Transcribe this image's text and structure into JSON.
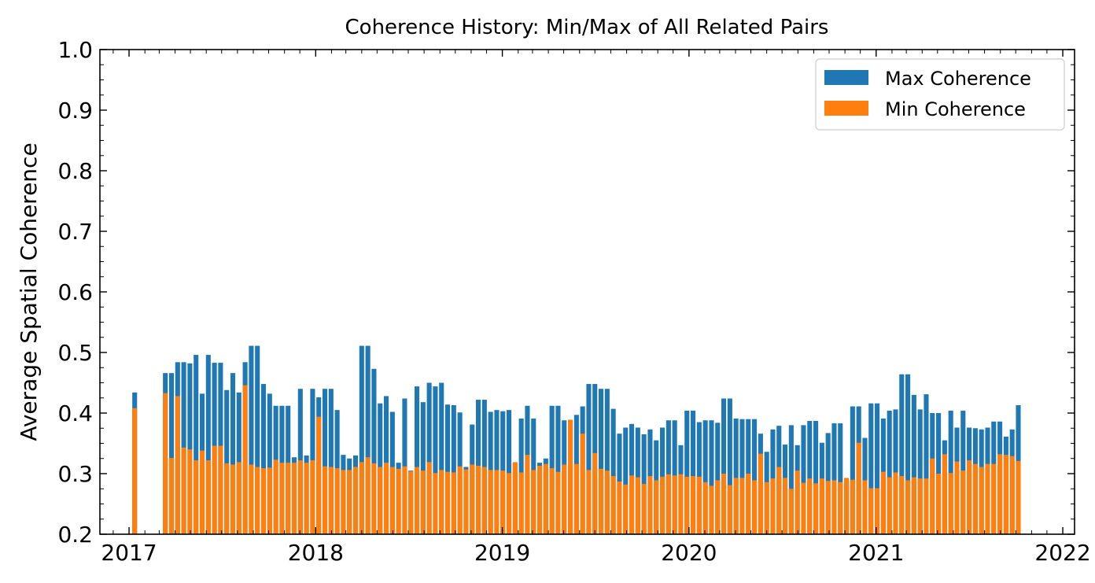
{
  "chart_data": {
    "type": "bar",
    "title": "Coherence History: Min/Max of All Related Pairs",
    "xlabel": "",
    "ylabel": "Average Spatial Coherence",
    "ylim": [
      0.2,
      1.0
    ],
    "xlim": [
      "2016-11-05",
      "2022-01-24"
    ],
    "yticks": [
      "0.2",
      "0.3",
      "0.4",
      "0.5",
      "0.6",
      "0.7",
      "0.8",
      "0.9",
      "1.0"
    ],
    "xticks": [
      "2017",
      "2018",
      "2019",
      "2020",
      "2021",
      "2022"
    ],
    "grid": false,
    "legend": "top-right",
    "stacked": false,
    "series": [
      {
        "name": "Max Coherence",
        "color": "#1f77b4",
        "values": [
          0.434,
          0.466,
          0.466,
          0.484,
          0.484,
          0.482,
          0.496,
          0.432,
          0.496,
          0.483,
          0.483,
          0.438,
          0.466,
          0.434,
          0.484,
          0.511,
          0.511,
          0.448,
          0.432,
          0.412,
          0.412,
          0.412,
          0.327,
          0.44,
          0.33,
          0.44,
          0.426,
          0.44,
          0.44,
          0.405,
          0.331,
          0.325,
          0.33,
          0.511,
          0.511,
          0.473,
          0.416,
          0.428,
          0.402,
          0.318,
          0.424,
          0.305,
          0.444,
          0.418,
          0.45,
          0.444,
          0.45,
          0.414,
          0.413,
          0.401,
          0.311,
          0.381,
          0.422,
          0.422,
          0.402,
          0.405,
          0.403,
          0.405,
          0.317,
          0.391,
          0.412,
          0.391,
          0.318,
          0.325,
          0.412,
          0.412,
          0.388,
          0.385,
          0.397,
          0.411,
          0.448,
          0.448,
          0.44,
          0.44,
          0.407,
          0.366,
          0.376,
          0.382,
          0.376,
          0.365,
          0.373,
          0.355,
          0.376,
          0.388,
          0.388,
          0.347,
          0.404,
          0.404,
          0.385,
          0.388,
          0.388,
          0.384,
          0.424,
          0.424,
          0.391,
          0.39,
          0.39,
          0.39,
          0.366,
          0.336,
          0.373,
          0.379,
          0.348,
          0.38,
          0.347,
          0.38,
          0.387,
          0.387,
          0.351,
          0.367,
          0.383,
          0.383,
          0.281,
          0.411,
          0.411,
          0.359,
          0.416,
          0.416,
          0.391,
          0.404,
          0.406,
          0.464,
          0.464,
          0.43,
          0.406,
          0.431,
          0.4,
          0.4,
          0.355,
          0.404,
          0.376,
          0.404,
          0.376,
          0.375,
          0.373,
          0.376,
          0.386,
          0.386,
          0.361,
          0.373,
          0.413
        ]
      },
      {
        "name": "Min Coherence",
        "color": "#ff7f0e",
        "values": [
          0.408,
          0.433,
          0.326,
          0.428,
          0.343,
          0.34,
          0.322,
          0.338,
          0.322,
          0.346,
          0.346,
          0.317,
          0.315,
          0.319,
          0.446,
          0.315,
          0.311,
          0.309,
          0.31,
          0.323,
          0.318,
          0.318,
          0.318,
          0.322,
          0.318,
          0.322,
          0.394,
          0.312,
          0.311,
          0.309,
          0.306,
          0.306,
          0.311,
          0.319,
          0.327,
          0.317,
          0.311,
          0.318,
          0.311,
          0.308,
          0.312,
          0.304,
          0.311,
          0.305,
          0.319,
          0.301,
          0.306,
          0.303,
          0.302,
          0.312,
          0.307,
          0.315,
          0.313,
          0.311,
          0.306,
          0.306,
          0.305,
          0.301,
          0.319,
          0.302,
          0.331,
          0.306,
          0.313,
          0.316,
          0.309,
          0.303,
          0.315,
          0.389,
          0.316,
          0.366,
          0.306,
          0.334,
          0.308,
          0.305,
          0.296,
          0.287,
          0.282,
          0.297,
          0.294,
          0.283,
          0.296,
          0.289,
          0.295,
          0.299,
          0.297,
          0.299,
          0.295,
          0.296,
          0.295,
          0.286,
          0.28,
          0.289,
          0.3,
          0.281,
          0.293,
          0.293,
          0.3,
          0.289,
          0.333,
          0.286,
          0.292,
          0.311,
          0.293,
          0.275,
          0.305,
          0.285,
          0.292,
          0.284,
          0.292,
          0.288,
          0.289,
          0.286,
          0.293,
          0.29,
          0.351,
          0.289,
          0.276,
          0.276,
          0.303,
          0.294,
          0.302,
          0.296,
          0.289,
          0.294,
          0.292,
          0.292,
          0.325,
          0.3,
          0.332,
          0.301,
          0.32,
          0.305,
          0.322,
          0.316,
          0.311,
          0.316,
          0.316,
          0.332,
          0.331,
          0.329,
          0.321
        ]
      }
    ]
  }
}
